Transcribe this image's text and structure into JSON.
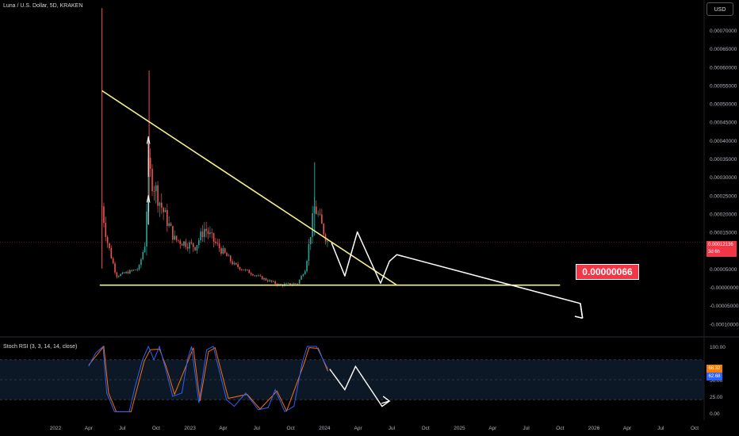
{
  "header": {
    "title": "Luna / U.S. Dollar, 5D, KRAKEN",
    "currency_button": "USD"
  },
  "price_axis": {
    "labels": [
      "0.00070000",
      "0.00065000",
      "0.00060000",
      "0.00055000",
      "0.00050000",
      "0.00045000",
      "0.00040000",
      "0.00035000",
      "0.00030000",
      "0.00025000",
      "0.00020000",
      "0.00015000",
      "0.00005000",
      "-0.00000000",
      "-0.00005000",
      "-0.00010000"
    ],
    "current_price": "0.00012136",
    "countdown": "3d 6h"
  },
  "target_label": "0.00000066",
  "time_axis": [
    "2022",
    "Apr",
    "Jul",
    "Oct",
    "2023",
    "Apr",
    "Jul",
    "Oct",
    "2024",
    "Apr",
    "Jul",
    "Oct",
    "2025",
    "Apr",
    "Jul",
    "Oct",
    "2026",
    "Apr",
    "Jul",
    "Oct"
  ],
  "indicator": {
    "title": "Stoch RSI (3, 3, 14, 14, close)",
    "axis_labels": [
      "100.00",
      "50.00",
      "25.00",
      "0.00"
    ],
    "k_value": "66.32",
    "d_value": "62.68",
    "colors": {
      "k": "#2962ff",
      "d": "#ff6d00",
      "k_tag": "#f57c00",
      "d_tag": "#2962ff"
    }
  },
  "colors": {
    "up": "#26a69a",
    "down": "#ef5350",
    "trendline": "#f5f08a",
    "projection": "#ffffff",
    "price_line": "#f23645"
  },
  "chart_data": {
    "type": "candlestick",
    "title": "Luna / U.S. Dollar, 5D, KRAKEN",
    "ylim": [
      -0.0001,
      0.00073
    ],
    "close_path": [
      [
        "2022-05-07",
        0.00022
      ],
      [
        "2022-05-20",
        0.00013
      ],
      [
        "2022-06-15",
        3e-05
      ],
      [
        "2022-07-15",
        4e-05
      ],
      [
        "2022-08-15",
        5e-05
      ],
      [
        "2022-09-01",
        0.00012
      ],
      [
        "2022-09-10",
        0.00032
      ],
      [
        "2022-09-25",
        0.00028
      ],
      [
        "2022-10-15",
        0.00022
      ],
      [
        "2022-11-20",
        0.00013
      ],
      [
        "2023-01-15",
        0.00011
      ],
      [
        "2023-02-10",
        0.00016
      ],
      [
        "2023-03-10",
        0.00012
      ],
      [
        "2023-05-01",
        6e-05
      ],
      [
        "2023-07-01",
        3e-05
      ],
      [
        "2023-09-01",
        5e-06
      ],
      [
        "2023-10-20",
        1e-05
      ],
      [
        "2023-11-10",
        5e-05
      ],
      [
        "2023-12-05",
        0.00022
      ],
      [
        "2024-01-10",
        0.00012
      ]
    ],
    "trendlines": [
      {
        "name": "descending resistance",
        "from": [
          "2022-05-07",
          0.000535
        ],
        "to": [
          "2024-07-15",
          5e-06
        ]
      },
      {
        "name": "horizontal support",
        "from": [
          "2022-05-01",
          5e-06
        ],
        "to": [
          "2025-10-01",
          5e-06
        ]
      }
    ],
    "projection": [
      [
        "2024-01-20",
        0.00012
      ],
      [
        "2024-02-25",
        3e-05
      ],
      [
        "2024-03-30",
        0.00015
      ],
      [
        "2024-06-01",
        1e-05
      ],
      [
        "2024-06-25",
        7e-05
      ],
      [
        "2024-07-15",
        8.8e-05
      ],
      [
        "2025-11-25",
        -4.5e-05
      ],
      [
        "2025-12-01",
        -8.5e-05
      ]
    ],
    "stoch_rsi": {
      "k": [
        [
          "2022-04-01",
          70
        ],
        [
          "2022-04-20",
          90
        ],
        [
          "2022-05-10",
          100
        ],
        [
          "2022-05-20",
          30
        ],
        [
          "2022-06-10",
          2
        ],
        [
          "2022-07-20",
          2
        ],
        [
          "2022-08-05",
          40
        ],
        [
          "2022-08-25",
          80
        ],
        [
          "2022-09-10",
          100
        ],
        [
          "2022-09-25",
          80
        ],
        [
          "2022-10-10",
          100
        ],
        [
          "2022-10-25",
          70
        ],
        [
          "2022-11-15",
          25
        ],
        [
          "2022-12-10",
          30
        ],
        [
          "2022-12-25",
          80
        ],
        [
          "2023-01-05",
          100
        ],
        [
          "2023-01-25",
          15
        ],
        [
          "2023-02-15",
          95
        ],
        [
          "2023-03-05",
          100
        ],
        [
          "2023-04-10",
          20
        ],
        [
          "2023-05-01",
          10
        ],
        [
          "2023-06-01",
          30
        ],
        [
          "2023-07-05",
          5
        ],
        [
          "2023-08-01",
          8
        ],
        [
          "2023-08-20",
          35
        ],
        [
          "2023-09-15",
          2
        ],
        [
          "2023-10-10",
          10
        ],
        [
          "2023-11-01",
          75
        ],
        [
          "2023-11-15",
          100
        ],
        [
          "2023-12-10",
          100
        ],
        [
          "2024-01-10",
          66.32
        ]
      ],
      "d": [
        [
          "2022-04-01",
          72
        ],
        [
          "2022-05-12",
          100
        ],
        [
          "2022-05-25",
          30
        ],
        [
          "2022-06-15",
          2
        ],
        [
          "2022-07-25",
          2
        ],
        [
          "2022-08-30",
          78
        ],
        [
          "2022-09-15",
          95
        ],
        [
          "2022-10-10",
          96
        ],
        [
          "2022-10-28",
          70
        ],
        [
          "2022-11-20",
          28
        ],
        [
          "2022-12-28",
          80
        ],
        [
          "2023-01-10",
          98
        ],
        [
          "2023-01-28",
          18
        ],
        [
          "2023-02-20",
          92
        ],
        [
          "2023-03-10",
          98
        ],
        [
          "2023-04-15",
          22
        ],
        [
          "2023-06-05",
          28
        ],
        [
          "2023-07-10",
          6
        ],
        [
          "2023-08-25",
          33
        ],
        [
          "2023-09-20",
          3
        ],
        [
          "2023-11-05",
          72
        ],
        [
          "2023-11-20",
          98
        ],
        [
          "2023-12-15",
          97
        ],
        [
          "2024-01-10",
          62.68
        ]
      ],
      "projection": [
        [
          "2024-01-15",
          66
        ],
        [
          "2024-02-25",
          35
        ],
        [
          "2024-03-25",
          70
        ],
        [
          "2024-06-05",
          10
        ],
        [
          "2024-06-25",
          18
        ]
      ],
      "bands": [
        80,
        50,
        20
      ]
    }
  }
}
